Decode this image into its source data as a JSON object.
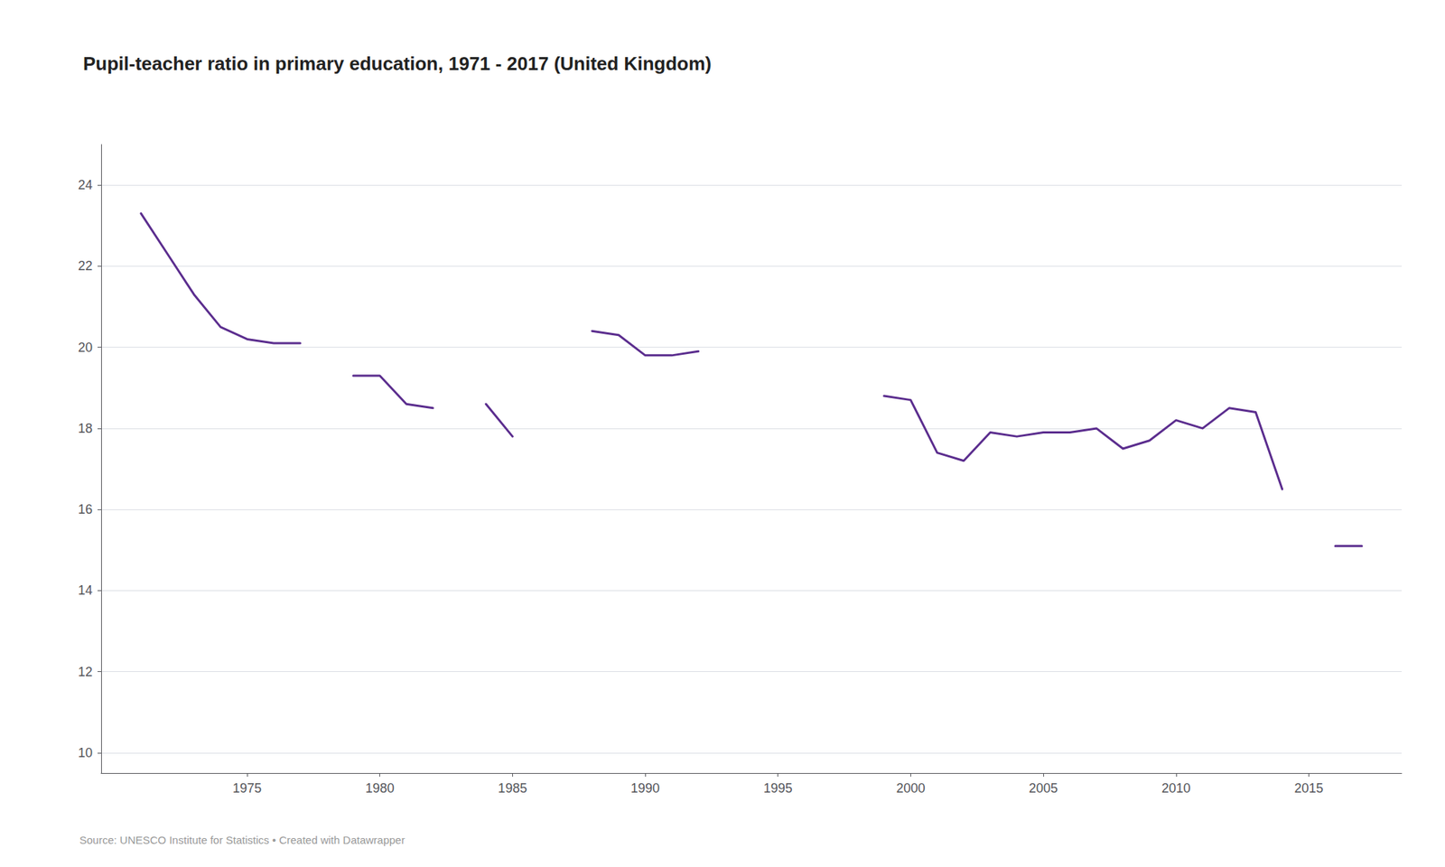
{
  "chart_data": {
    "type": "line",
    "title": "Pupil-teacher ratio in primary education, 1971 - 2017 (United Kingdom)",
    "annotation": "Source: UNESCO Institute for Statistics • Created with Datawrapper",
    "color": "#5B2D8E",
    "x": [
      1971,
      1972,
      1973,
      1974,
      1975,
      1976,
      1977,
      1978,
      1979,
      1980,
      1981,
      1982,
      1983,
      1984,
      1985,
      1986,
      1988,
      1989,
      1990,
      1991,
      1992,
      1993,
      1999,
      2000,
      2001,
      2002,
      2003,
      2004,
      2005,
      2006,
      2007,
      2008,
      2009,
      2010,
      2011,
      2012,
      2013,
      2014,
      2015,
      2016,
      2017
    ],
    "values": [
      23.3,
      22.3,
      21.3,
      20.5,
      20.2,
      20.1,
      20.1,
      null,
      19.3,
      19.3,
      18.6,
      18.5,
      null,
      18.6,
      17.8,
      null,
      20.4,
      20.3,
      19.8,
      19.8,
      19.9,
      null,
      18.8,
      18.7,
      17.4,
      17.2,
      17.9,
      17.8,
      17.9,
      17.9,
      18.0,
      17.5,
      17.7,
      18.2,
      18.0,
      18.5,
      18.4,
      16.5,
      null,
      15.1,
      15.1
    ],
    "xlim": [
      1969.5,
      2018.5
    ],
    "ylim": [
      9.5,
      25.0
    ],
    "xticks": [
      1975,
      1980,
      1985,
      1990,
      1995,
      2000,
      2005,
      2010,
      2015
    ],
    "yticks": [
      10,
      12,
      14,
      16,
      18,
      20,
      22,
      24
    ],
    "grid": "y"
  }
}
